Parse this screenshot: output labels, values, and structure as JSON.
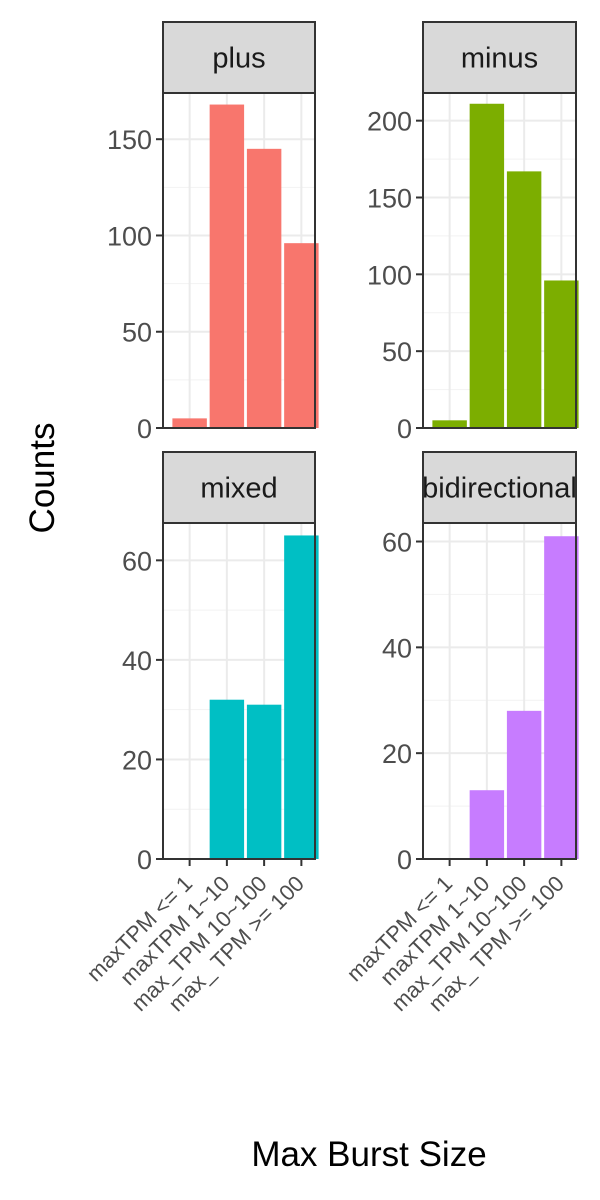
{
  "chart_data": {
    "type": "bar",
    "xlabel": "Max Burst Size",
    "ylabel": "Counts",
    "categories": [
      "maxTPM <= 1",
      "maxTPM 1~10",
      "max_TPM 10~100",
      "max_ TPM >= 100"
    ],
    "panels": [
      {
        "name": "plus",
        "color": "#F8766D",
        "values": [
          5,
          168,
          145,
          96
        ],
        "ylim": [
          0,
          174
        ],
        "yticks": [
          0,
          50,
          100,
          150
        ]
      },
      {
        "name": "minus",
        "color": "#7CAE00",
        "values": [
          5,
          211,
          167,
          96
        ],
        "ylim": [
          0,
          218
        ],
        "yticks": [
          0,
          50,
          100,
          150,
          200
        ]
      },
      {
        "name": "mixed",
        "color": "#00BFC4",
        "values": [
          0,
          32,
          31,
          65
        ],
        "ylim": [
          0,
          67.5
        ],
        "yticks": [
          0,
          20,
          40,
          60
        ]
      },
      {
        "name": "bidirectional",
        "color": "#C77CFF",
        "values": [
          0,
          13,
          28,
          61
        ],
        "ylim": [
          0,
          63.5
        ],
        "yticks": [
          0,
          20,
          40,
          60
        ]
      }
    ],
    "grid": true,
    "legend": "none"
  }
}
